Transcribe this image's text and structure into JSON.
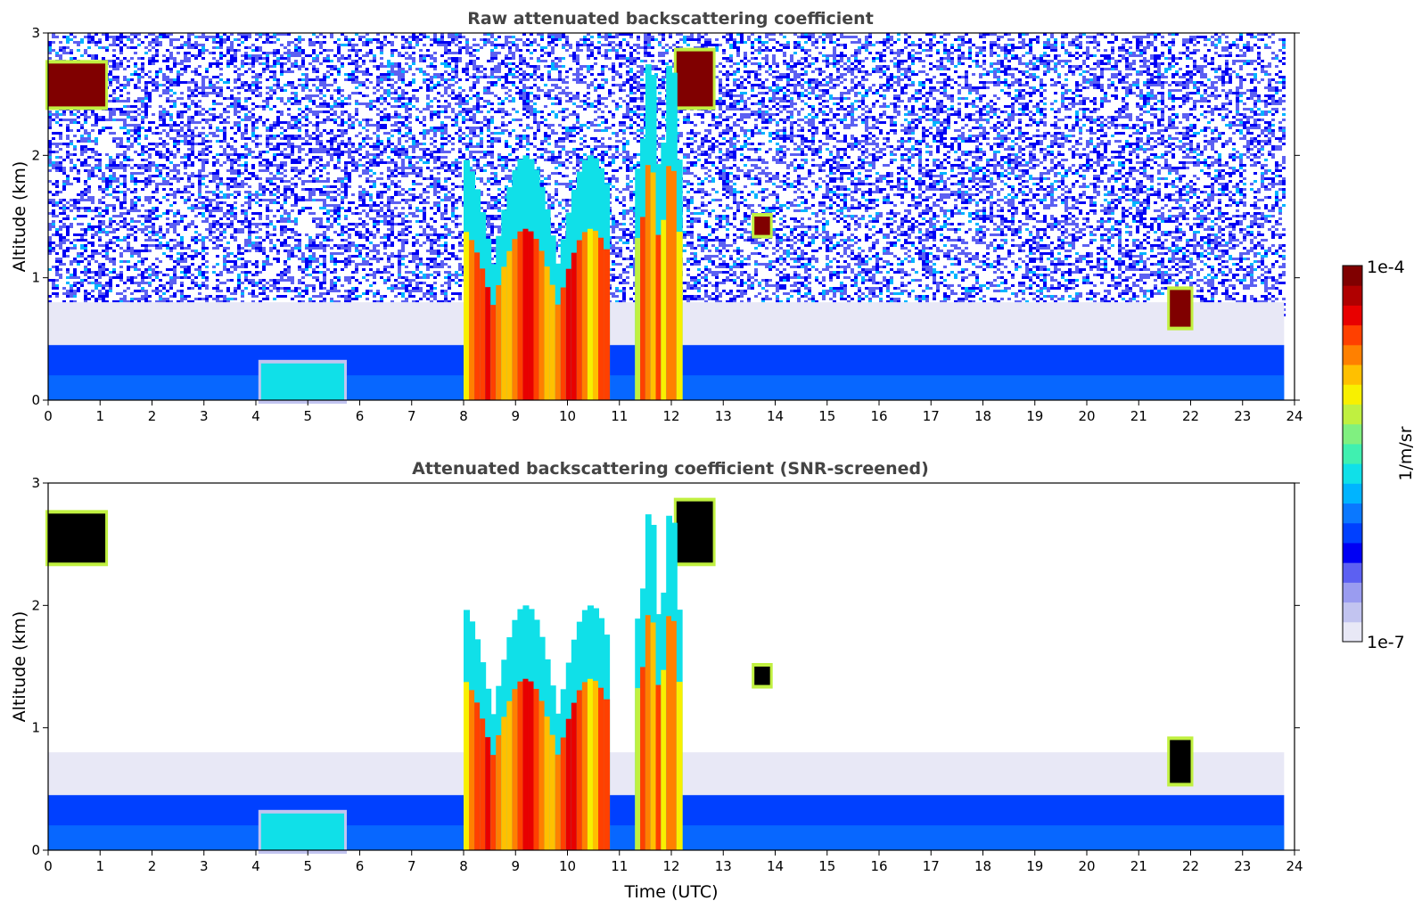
{
  "colors": {
    "colormap": [
      "#e8e8f6",
      "#c2c4f0",
      "#9a9cf0",
      "#5c60f2",
      "#0000f4",
      "#0040ff",
      "#0a78ff",
      "#00b4ff",
      "#10e0e8",
      "#40f0b0",
      "#80f080",
      "#c0f040",
      "#f8f000",
      "#ffc000",
      "#ff8000",
      "#ff4000",
      "#e80000",
      "#b00000",
      "#800000"
    ],
    "saturated_screened": "#000000"
  },
  "chart_data": [
    {
      "type": "heatmap",
      "title": "Raw attenuated backscattering coefficient",
      "xlabel": "",
      "ylabel": "Altitude (km)",
      "xlim": [
        0,
        24
      ],
      "ylim": [
        0,
        3
      ],
      "xticks": [
        "0",
        "1",
        "2",
        "3",
        "4",
        "5",
        "6",
        "7",
        "8",
        "9",
        "10",
        "11",
        "12",
        "13",
        "14",
        "15",
        "16",
        "17",
        "18",
        "19",
        "20",
        "21",
        "22",
        "23",
        "24"
      ],
      "yticks": [
        "0",
        "1",
        "2",
        "3"
      ],
      "features": [
        {
          "kind": "boundary_layer",
          "x": [
            0,
            23.8
          ],
          "top_km": 0.45,
          "level": 0.3
        },
        {
          "kind": "cloud",
          "x": [
            0.0,
            1.1
          ],
          "y": [
            2.4,
            2.75
          ],
          "level": 1.0
        },
        {
          "kind": "cloud",
          "x": [
            12.1,
            12.8
          ],
          "y": [
            2.4,
            2.85
          ],
          "level": 1.0
        },
        {
          "kind": "cloud",
          "x": [
            13.6,
            13.9
          ],
          "y": [
            1.35,
            1.5
          ],
          "level": 1.0
        },
        {
          "kind": "cloud",
          "x": [
            21.6,
            22.0
          ],
          "y": [
            0.6,
            0.9
          ],
          "level": 1.0
        },
        {
          "kind": "precipitation",
          "x": [
            8.0,
            10.8
          ],
          "y": [
            0,
            2.0
          ],
          "level": 0.8
        },
        {
          "kind": "precipitation",
          "x": [
            11.3,
            12.2
          ],
          "y": [
            0,
            2.8
          ],
          "level": 0.75
        },
        {
          "kind": "aerosol",
          "x": [
            4.1,
            5.7
          ],
          "y": [
            0,
            0.3
          ],
          "level": 0.45
        }
      ]
    },
    {
      "type": "heatmap",
      "title": "Attenuated backscattering coefficient (SNR-screened)",
      "xlabel": "Time (UTC)",
      "ylabel": "Altitude (km)",
      "xlim": [
        0,
        24
      ],
      "ylim": [
        0,
        3
      ],
      "xticks": [
        "0",
        "1",
        "2",
        "3",
        "4",
        "5",
        "6",
        "7",
        "8",
        "9",
        "10",
        "11",
        "12",
        "13",
        "14",
        "15",
        "16",
        "17",
        "18",
        "19",
        "20",
        "21",
        "22",
        "23",
        "24"
      ],
      "yticks": [
        "0",
        "1",
        "2",
        "3"
      ],
      "features": [
        {
          "kind": "boundary_layer",
          "x": [
            0,
            23.8
          ],
          "top_km": 0.45,
          "level": 0.3
        },
        {
          "kind": "cloud",
          "x": [
            0.0,
            1.1
          ],
          "y": [
            2.35,
            2.75
          ],
          "level": 1.0
        },
        {
          "kind": "cloud",
          "x": [
            12.1,
            12.8
          ],
          "y": [
            2.35,
            2.85
          ],
          "level": 1.0
        },
        {
          "kind": "cloud",
          "x": [
            13.6,
            13.9
          ],
          "y": [
            1.35,
            1.5
          ],
          "level": 1.0
        },
        {
          "kind": "cloud",
          "x": [
            21.6,
            22.0
          ],
          "y": [
            0.55,
            0.9
          ],
          "level": 1.0
        },
        {
          "kind": "precipitation",
          "x": [
            8.0,
            10.8
          ],
          "y": [
            0,
            2.0
          ],
          "level": 0.8
        },
        {
          "kind": "precipitation",
          "x": [
            11.3,
            12.2
          ],
          "y": [
            0,
            2.8
          ],
          "level": 0.75
        },
        {
          "kind": "aerosol",
          "x": [
            4.1,
            5.7
          ],
          "y": [
            0,
            0.3
          ],
          "level": 0.45
        }
      ]
    }
  ],
  "colorbar": {
    "label": "1/m/sr",
    "max_label": "1e-4",
    "min_label": "1e-7",
    "scale": "log",
    "range": [
      1e-07,
      0.0001
    ]
  }
}
